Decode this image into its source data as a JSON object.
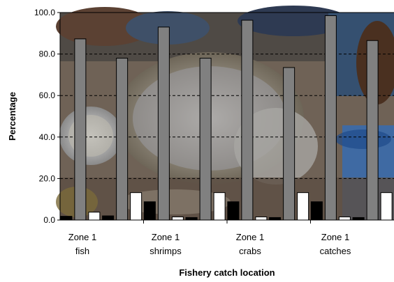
{
  "chart_data": {
    "type": "bar",
    "title": "",
    "xlabel": "Fishery catch location",
    "ylabel": "Percentage",
    "ylim": [
      0,
      100
    ],
    "y_ticks": [
      "0.0",
      "20.0",
      "40.0",
      "60.0",
      "80.0",
      "100.0"
    ],
    "grid": "dashed-horizontal",
    "legend": "none",
    "group_labels": [
      [
        "Zone 1",
        "fish"
      ],
      [
        "Zone 1",
        "shrimps"
      ],
      [
        "Zone 1",
        "crabs"
      ],
      [
        "Zone 1",
        "catches"
      ]
    ],
    "series": [
      {
        "color": "#000000",
        "values": [
          1.8,
          2.0,
          8.8,
          1.2,
          8.8,
          1.2,
          8.8,
          1.2
        ]
      },
      {
        "color": "#808080",
        "values": [
          87.3,
          78.0,
          93.0,
          78.0,
          96.3,
          73.5,
          98.5,
          86.5
        ]
      },
      {
        "color": "#ffffff",
        "values": [
          3.8,
          13.2,
          1.5,
          13.2,
          1.5,
          13.2,
          1.5,
          13.2
        ]
      }
    ],
    "background": "photo of fish, shrimps and crabs on a market table"
  }
}
